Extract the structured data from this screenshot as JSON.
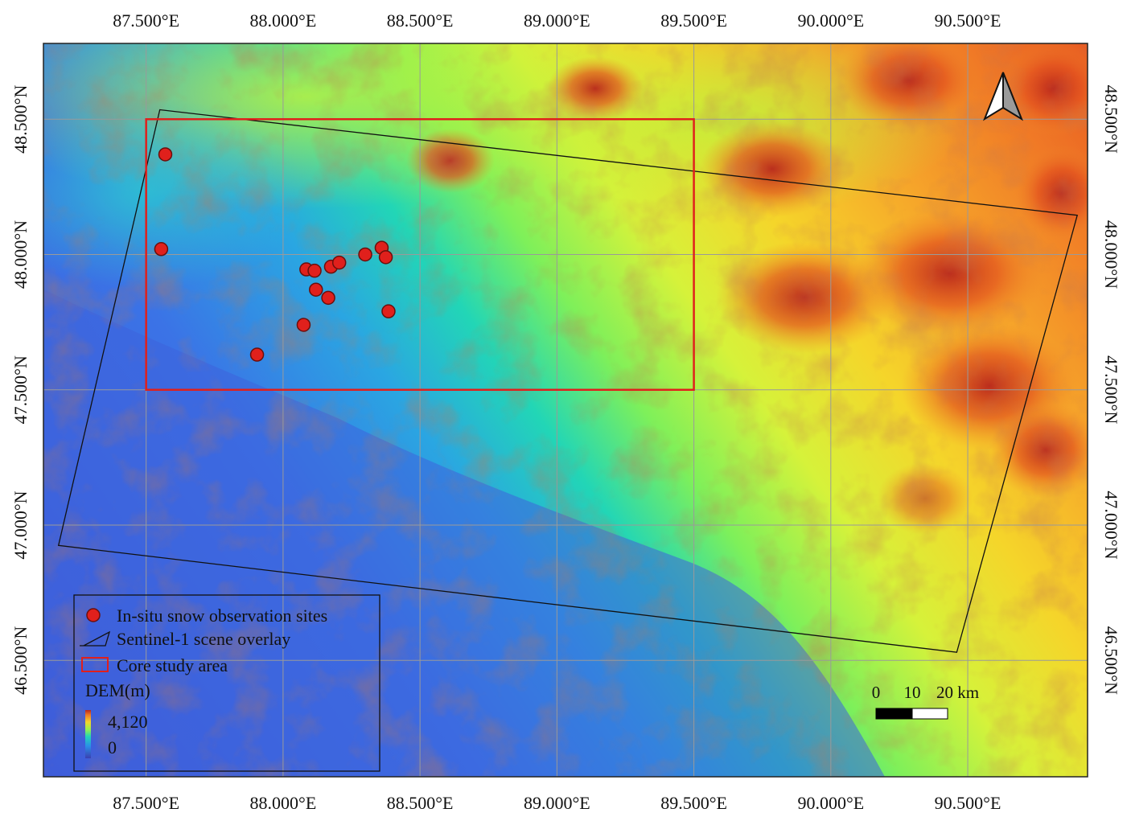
{
  "map": {
    "extent": {
      "lon_min": 87.125,
      "lon_max": 90.9375,
      "lat_min": 46.07,
      "lat_max": 48.78
    },
    "graticule": {
      "lon_ticks": [
        87.5,
        88.0,
        88.5,
        89.0,
        89.5,
        90.0,
        90.5
      ],
      "lat_ticks": [
        48.5,
        48.0,
        47.5,
        47.0,
        46.5
      ],
      "lon_labels": [
        "87.500°E",
        "88.000°E",
        "88.500°E",
        "89.000°E",
        "89.500°E",
        "90.000°E",
        "90.500°E"
      ],
      "lat_labels": [
        "48.500°N",
        "48.000°N",
        "47.500°N",
        "47.000°N",
        "46.500°N"
      ]
    },
    "core_study_area": {
      "lon_min": 87.5,
      "lon_max": 89.5,
      "lat_min": 47.5,
      "lat_max": 48.5,
      "color": "#e0201c"
    },
    "sentinel_scene": [
      {
        "lon": 87.55,
        "lat": 48.535
      },
      {
        "lon": 90.9,
        "lat": 48.145
      },
      {
        "lon": 90.46,
        "lat": 46.53
      },
      {
        "lon": 87.18,
        "lat": 46.925
      }
    ],
    "sites": [
      {
        "lon": 87.57,
        "lat": 48.37
      },
      {
        "lon": 87.555,
        "lat": 48.02
      },
      {
        "lon": 88.085,
        "lat": 47.945
      },
      {
        "lon": 88.115,
        "lat": 47.94
      },
      {
        "lon": 88.175,
        "lat": 47.955
      },
      {
        "lon": 88.205,
        "lat": 47.97
      },
      {
        "lon": 88.3,
        "lat": 48.0
      },
      {
        "lon": 88.36,
        "lat": 48.025
      },
      {
        "lon": 88.375,
        "lat": 47.99
      },
      {
        "lon": 88.12,
        "lat": 47.87
      },
      {
        "lon": 88.165,
        "lat": 47.84
      },
      {
        "lon": 88.385,
        "lat": 47.79
      },
      {
        "lon": 88.075,
        "lat": 47.74
      },
      {
        "lon": 87.905,
        "lat": 47.63
      }
    ],
    "site_color": "#e0201c"
  },
  "legend": {
    "items": [
      {
        "label": "In-situ snow observation sites"
      },
      {
        "label": "Sentinel-1 scene overlay"
      },
      {
        "label": "Core study area"
      }
    ],
    "dem_title": "DEM(m)",
    "dem_max": "4,120",
    "dem_min": "0"
  },
  "scale_bar": {
    "labels": [
      "0",
      "10",
      "20 km"
    ]
  },
  "north_arrow": {
    "icon": "north-arrow-icon"
  }
}
